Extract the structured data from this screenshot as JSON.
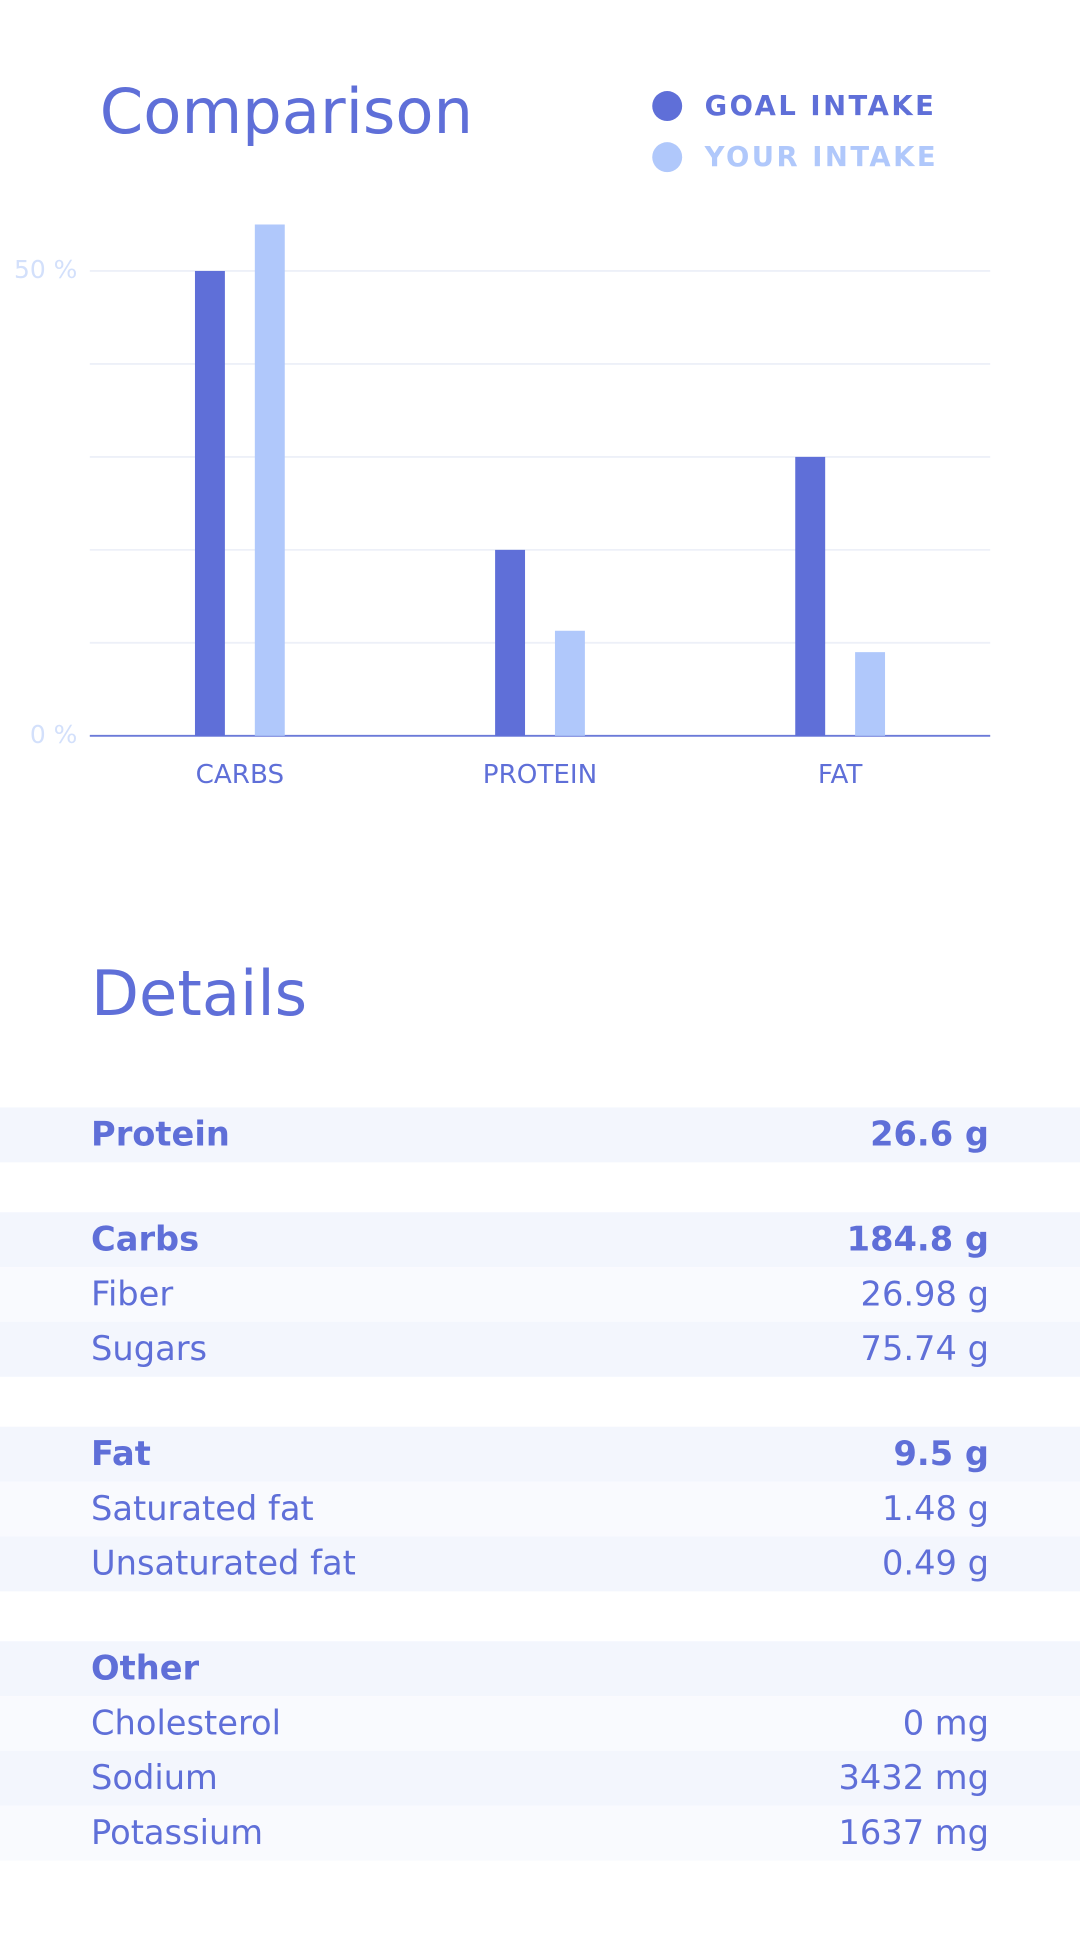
{
  "chart_data": {
    "type": "bar",
    "title": "Comparison",
    "categories": [
      "CARBS",
      "PROTEIN",
      "FAT"
    ],
    "series": [
      {
        "name": "GOAL INTAKE",
        "color": "#5f6fd8",
        "values": [
          50,
          20,
          30
        ]
      },
      {
        "name": "YOUR INTAKE",
        "color": "#b0c8fb",
        "values": [
          55,
          11.3,
          9
        ]
      }
    ],
    "ylim": [
      0,
      55
    ],
    "yticks": [
      {
        "value": 0,
        "label": "0 %"
      },
      10,
      20,
      30,
      40,
      {
        "value": 50,
        "label": "50 %"
      }
    ],
    "grid": true
  },
  "details": {
    "title": "Details",
    "groups": [
      {
        "name": "Protein",
        "value": "26.6 g",
        "items": []
      },
      {
        "name": "Carbs",
        "value": "184.8 g",
        "items": [
          {
            "label": "Fiber",
            "value": "26.98 g"
          },
          {
            "label": "Sugars",
            "value": "75.74 g"
          }
        ]
      },
      {
        "name": "Fat",
        "value": "9.5 g",
        "items": [
          {
            "label": "Saturated fat",
            "value": "1.48 g"
          },
          {
            "label": "Unsaturated fat",
            "value": "0.49 g"
          }
        ]
      },
      {
        "name": "Other",
        "items": [
          {
            "label": "Cholesterol",
            "value": "0 mg"
          },
          {
            "label": "Sodium",
            "value": "3432 mg"
          },
          {
            "label": "Potassium",
            "value": "1637 mg"
          }
        ]
      }
    ]
  }
}
